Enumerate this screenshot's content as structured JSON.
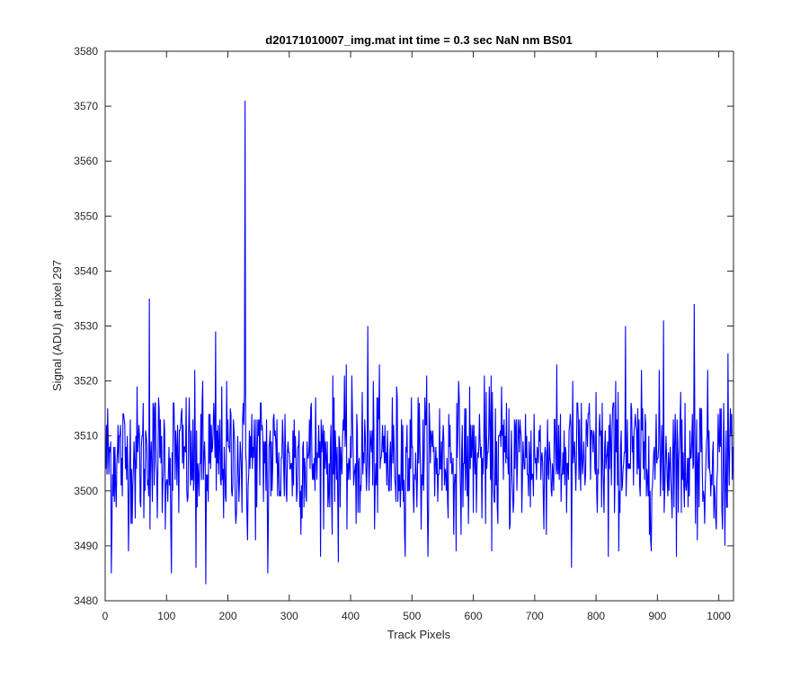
{
  "chart_data": {
    "type": "line",
    "title": "d20171010007_img.mat int time = 0.3 sec  NaN nm BS01",
    "xlabel": "Track Pixels",
    "ylabel": "Signal (ADU) at pixel 297",
    "xlim": [
      0,
      1024
    ],
    "ylim": [
      3480,
      3580
    ],
    "xticks": [
      0,
      100,
      200,
      300,
      400,
      500,
      600,
      700,
      800,
      900,
      1000
    ],
    "yticks": [
      3480,
      3490,
      3500,
      3510,
      3520,
      3530,
      3540,
      3550,
      3560,
      3570,
      3580
    ],
    "grid": false,
    "box": true,
    "series_color": "#0000ff",
    "series": [
      {
        "x_start": 1,
        "x_step": 1,
        "n_points": 1024,
        "mean": 3506,
        "std": 6.5,
        "anchor_points": [
          [
            10,
            3485
          ],
          [
            72,
            3535
          ],
          [
            108,
            3485
          ],
          [
            148,
            3486
          ],
          [
            164,
            3483
          ],
          [
            180,
            3529
          ],
          [
            228,
            3571
          ],
          [
            232,
            3491
          ],
          [
            265,
            3485
          ],
          [
            380,
            3487
          ],
          [
            428,
            3530
          ],
          [
            760,
            3486
          ],
          [
            820,
            3488
          ],
          [
            848,
            3530
          ],
          [
            910,
            3531
          ],
          [
            960,
            3534
          ],
          [
            1010,
            3490
          ],
          [
            1015,
            3525
          ]
        ]
      }
    ]
  }
}
